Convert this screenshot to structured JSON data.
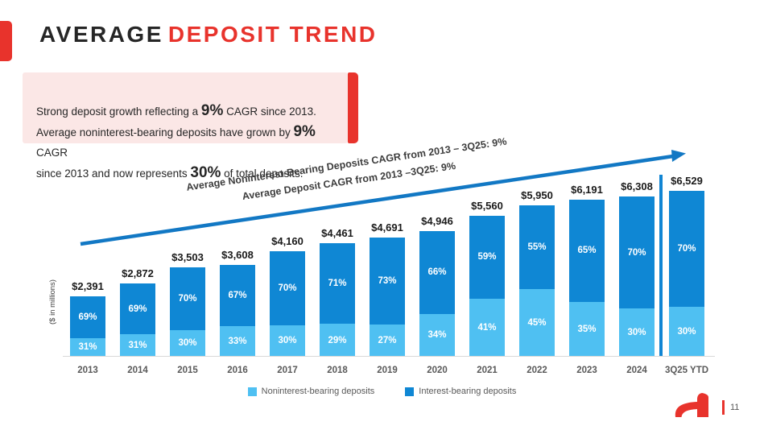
{
  "title": {
    "part1": "AVERAGE",
    "part2": "DEPOSIT TREND"
  },
  "callout": {
    "segments": [
      {
        "text": "Strong deposit growth reflecting a ",
        "emph": false
      },
      {
        "text": "9%",
        "emph": true
      },
      {
        "text": " CAGR since 2013.\nAverage noninterest-bearing deposits have grown by ",
        "emph": false
      },
      {
        "text": "9%",
        "emph": true
      },
      {
        "text": " CAGR\nsince 2013 and now represents ",
        "emph": false
      },
      {
        "text": "30%",
        "emph": true
      },
      {
        "text": " of total deposits.",
        "emph": false
      }
    ]
  },
  "annotation": {
    "line1": "Average Noninterest-Bearing Deposits CAGR from 2013 – 3Q25: 9%",
    "line2": "Average Deposit CAGR from 2013 –3Q25: 9%"
  },
  "chart_data": {
    "type": "bar",
    "stacked": true,
    "title": "",
    "xlabel": "",
    "ylabel": "($ in millions)",
    "categories": [
      "2013",
      "2014",
      "2015",
      "2016",
      "2017",
      "2018",
      "2019",
      "2020",
      "2021",
      "2022",
      "2023",
      "2024",
      "3Q25 YTD"
    ],
    "totals": [
      2391,
      2872,
      3503,
      3608,
      4160,
      4461,
      4691,
      4946,
      5560,
      5950,
      6191,
      6308,
      6529
    ],
    "totals_formatted": [
      "$2,391",
      "$2,872",
      "$3,503",
      "$3,608",
      "$4,160",
      "$4,461",
      "$4,691",
      "$4,946",
      "$5,560",
      "$5,950",
      "$6,191",
      "$6,308",
      "$6,529"
    ],
    "series": [
      {
        "name": "Noninterest-bearing deposits",
        "color": "#4FC0F2",
        "pct": [
          31,
          31,
          30,
          33,
          30,
          29,
          27,
          34,
          41,
          45,
          35,
          30,
          30
        ]
      },
      {
        "name": "Interest-bearing deposits",
        "color": "#0F87D4",
        "pct": [
          69,
          69,
          70,
          67,
          70,
          71,
          73,
          66,
          59,
          55,
          65,
          70,
          70
        ]
      }
    ],
    "divider_before_category": "3Q25 YTD",
    "legend_position": "bottom",
    "grid": false,
    "ylim": [
      0,
      6600
    ]
  },
  "colors": {
    "accent_red": "#E8332C",
    "callout_bg": "#FBE7E6",
    "light_blue": "#4FC0F2",
    "dark_blue": "#0F87D4",
    "arrow_blue": "#1278C4"
  },
  "footer": {
    "page_number": "11",
    "logo": "hanmi-mark"
  }
}
